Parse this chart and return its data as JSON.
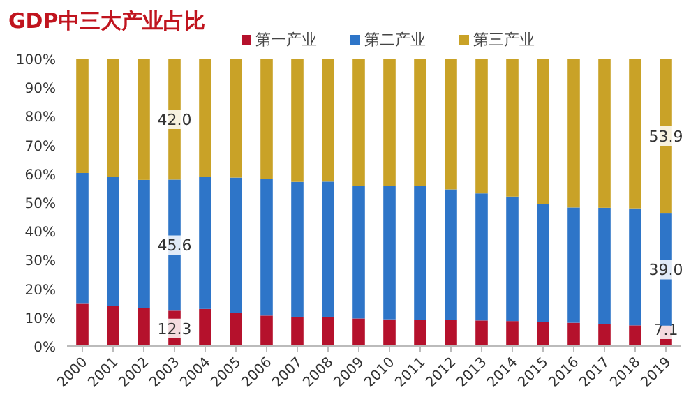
{
  "chart_data": {
    "type": "bar",
    "title": "GDP中三大产业占比",
    "stacked": true,
    "legend": "top",
    "grid": false,
    "categories": [
      "2000",
      "2001",
      "2002",
      "2003",
      "2004",
      "2005",
      "2006",
      "2007",
      "2008",
      "2009",
      "2010",
      "2011",
      "2012",
      "2013",
      "2014",
      "2015",
      "2016",
      "2017",
      "2018",
      "2019"
    ],
    "ylim": [
      0,
      100
    ],
    "yticks": [
      {
        "value": 0,
        "label": "0%"
      },
      {
        "value": 10,
        "label": "10%"
      },
      {
        "value": 20,
        "label": "20%"
      },
      {
        "value": 30,
        "label": "30%"
      },
      {
        "value": 40,
        "label": "40%"
      },
      {
        "value": 50,
        "label": "50%"
      },
      {
        "value": 60,
        "label": "60%"
      },
      {
        "value": 70,
        "label": "70%"
      },
      {
        "value": 80,
        "label": "80%"
      },
      {
        "value": 90,
        "label": "90%"
      },
      {
        "value": 100,
        "label": "100%"
      }
    ],
    "series": [
      {
        "name": "第一产业",
        "color": "#b5112c",
        "values": [
          14.7,
          14.0,
          13.3,
          12.3,
          12.9,
          11.6,
          10.6,
          10.2,
          10.2,
          9.6,
          9.3,
          9.2,
          9.1,
          8.9,
          8.7,
          8.4,
          8.1,
          7.6,
          7.2,
          7.1
        ],
        "value_labels": [
          null,
          null,
          null,
          "12.3",
          null,
          null,
          null,
          null,
          null,
          null,
          null,
          null,
          null,
          null,
          null,
          null,
          null,
          null,
          null,
          "7.1"
        ]
      },
      {
        "name": "第二产业",
        "color": "#2e75c8",
        "values": [
          45.5,
          44.8,
          44.5,
          45.6,
          45.9,
          47.0,
          47.6,
          46.9,
          47.0,
          46.0,
          46.5,
          46.5,
          45.4,
          44.2,
          43.3,
          41.1,
          40.1,
          40.5,
          40.7,
          39.0
        ],
        "value_labels": [
          null,
          null,
          null,
          "45.6",
          null,
          null,
          null,
          null,
          null,
          null,
          null,
          null,
          null,
          null,
          null,
          null,
          null,
          null,
          null,
          "39.0"
        ]
      },
      {
        "name": "第三产业",
        "color": "#c9a227",
        "values": [
          39.8,
          41.2,
          42.2,
          42.0,
          41.2,
          41.4,
          41.8,
          42.9,
          42.8,
          44.4,
          44.2,
          44.3,
          45.5,
          46.9,
          48.0,
          50.5,
          51.8,
          51.9,
          52.1,
          53.9
        ],
        "value_labels": [
          null,
          null,
          null,
          "42.0",
          null,
          null,
          null,
          null,
          null,
          null,
          null,
          null,
          null,
          null,
          null,
          null,
          null,
          null,
          null,
          "53.9"
        ]
      }
    ]
  }
}
